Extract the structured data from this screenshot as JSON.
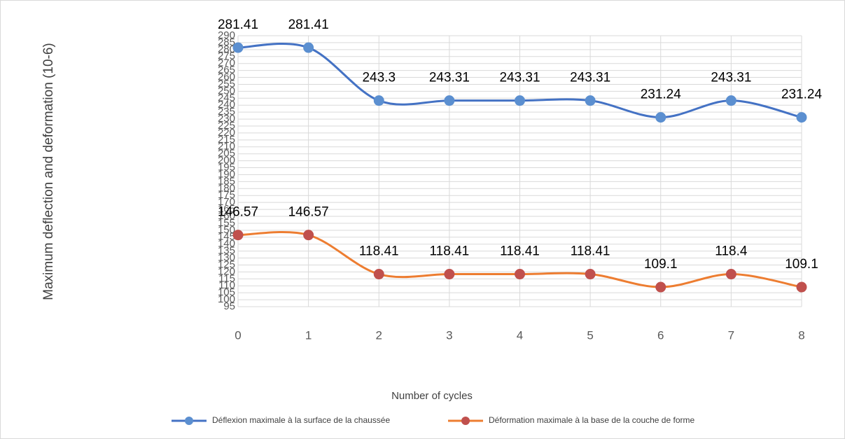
{
  "chart_data": {
    "type": "line",
    "x_label": "Number of cycles",
    "y_label": "Maximum deflection and deformation (10-6)",
    "x": [
      0,
      1,
      2,
      3,
      4,
      5,
      6,
      7,
      8
    ],
    "xlim": [
      0,
      8
    ],
    "xticks": [
      0,
      1,
      2,
      3,
      4,
      5,
      6,
      7,
      8
    ],
    "ylim": [
      95,
      290
    ],
    "yticks": [
      95,
      100,
      105,
      110,
      115,
      120,
      125,
      130,
      135,
      140,
      145,
      150,
      155,
      160,
      165,
      170,
      175,
      180,
      185,
      190,
      195,
      200,
      205,
      210,
      215,
      220,
      225,
      230,
      235,
      240,
      245,
      250,
      255,
      260,
      265,
      270,
      275,
      280,
      285,
      290
    ],
    "grid": true,
    "smooth": true,
    "legend": "bottom",
    "series": [
      {
        "name": "Déflexion maximale à la surface de la chaussée",
        "color": "#4472c4",
        "marker_color": "#5b8fd0",
        "values": [
          281.41,
          281.41,
          243.3,
          243.31,
          243.31,
          243.31,
          231.24,
          243.31,
          231.24
        ]
      },
      {
        "name": "Déformation maximale à la base de la couche de forme",
        "color": "#ed7d31",
        "marker_color": "#c0504d",
        "values": [
          146.57,
          146.57,
          118.41,
          118.41,
          118.41,
          118.41,
          109.1,
          118.4,
          109.1
        ]
      }
    ]
  }
}
